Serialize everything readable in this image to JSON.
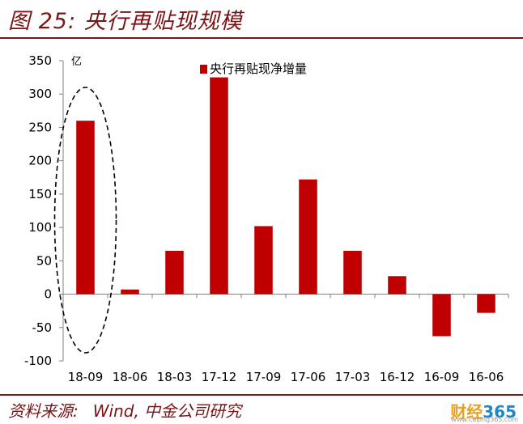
{
  "figure": {
    "title": "图 25:  央行再贴现规模",
    "source_label": "资料来源:",
    "source_value": "Wind,  中金公司研究"
  },
  "watermark": {
    "brand_text": "财经",
    "brand_num": "365",
    "url": "www.caijing365.com"
  },
  "colors": {
    "bar": "#c00000",
    "title": "#7a1416",
    "axis": "#808080"
  },
  "chart_data": {
    "type": "bar",
    "unit_label": "亿",
    "categories": [
      "18-09",
      "18-06",
      "18-03",
      "17-12",
      "17-09",
      "17-06",
      "17-03",
      "16-12",
      "16-09",
      "16-06"
    ],
    "series": [
      {
        "name": "央行再贴现净增量",
        "values": [
          260,
          7,
          65,
          325,
          102,
          172,
          65,
          27,
          -63,
          -28
        ]
      }
    ],
    "ylim": [
      -100,
      350
    ],
    "yticks": [
      350,
      300,
      250,
      200,
      150,
      100,
      50,
      0,
      -50,
      -100
    ],
    "ytick_labels": [
      "350",
      "300",
      "250",
      "200",
      "150",
      "100",
      "50",
      "0",
      "-50",
      "-100"
    ],
    "legend_position": "top",
    "annotation": "dashed-ellipse-around-18-09",
    "grid": false
  }
}
